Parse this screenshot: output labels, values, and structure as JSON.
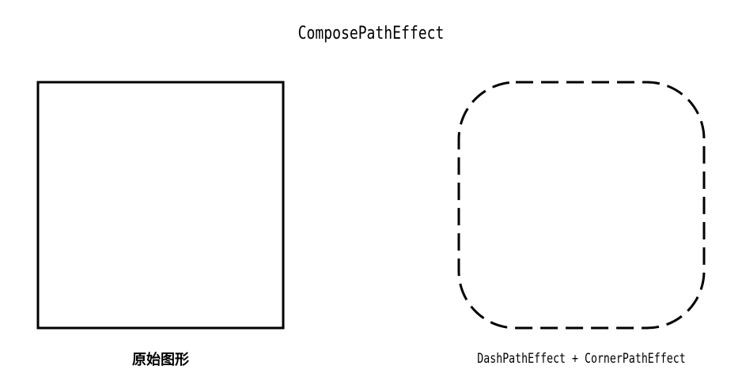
{
  "title": "ComposePathEffect",
  "left_panel": {
    "caption": "原始图形"
  },
  "right_panel": {
    "caption": "DashPathEffect + CornerPathEffect"
  },
  "colors": {
    "background": "#ffffff",
    "stroke": "#000000"
  }
}
